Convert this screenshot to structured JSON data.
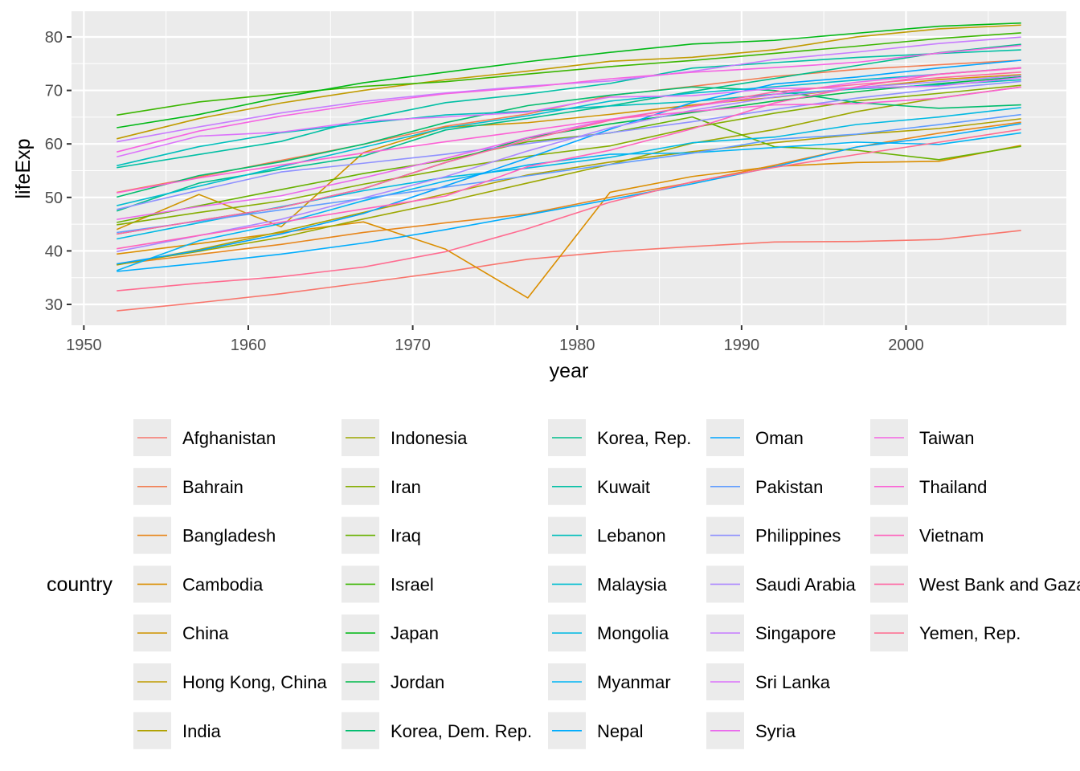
{
  "chart_data": {
    "type": "line",
    "xlabel": "year",
    "ylabel": "lifeExp",
    "xlim": [
      1949.25,
      2009.75
    ],
    "ylim": [
      26.1,
      84.8
    ],
    "x_ticks": [
      1950,
      1960,
      1970,
      1980,
      1990,
      2000
    ],
    "y_ticks": [
      30,
      40,
      50,
      60,
      70,
      80
    ],
    "grid": true,
    "legend_title": "country",
    "legend_position": "bottom",
    "x": [
      1952,
      1957,
      1962,
      1967,
      1972,
      1977,
      1982,
      1987,
      1992,
      1997,
      2002,
      2007
    ],
    "series": [
      {
        "name": "Afghanistan",
        "color": "#F8766D",
        "values": [
          28.8,
          30.33,
          32.0,
          34.02,
          36.09,
          38.44,
          39.85,
          40.82,
          41.67,
          41.76,
          42.13,
          43.83
        ]
      },
      {
        "name": "Bahrain",
        "color": "#F27D52",
        "values": [
          50.94,
          53.83,
          56.92,
          59.92,
          63.3,
          65.59,
          69.05,
          70.75,
          72.6,
          73.92,
          74.8,
          75.64
        ]
      },
      {
        "name": "Bangladesh",
        "color": "#E7861B",
        "values": [
          37.48,
          39.35,
          41.22,
          43.45,
          45.25,
          46.92,
          50.01,
          52.82,
          56.02,
          59.41,
          62.01,
          64.06
        ]
      },
      {
        "name": "Cambodia",
        "color": "#DB8E00",
        "values": [
          39.42,
          41.37,
          43.42,
          45.42,
          40.32,
          31.22,
          50.96,
          53.91,
          55.8,
          56.53,
          56.75,
          59.72
        ]
      },
      {
        "name": "China",
        "color": "#CF9400",
        "values": [
          44.0,
          50.55,
          44.5,
          58.38,
          63.12,
          63.97,
          65.53,
          67.27,
          68.69,
          70.43,
          72.03,
          72.96
        ]
      },
      {
        "name": "Hong Kong, China",
        "color": "#C09B00",
        "values": [
          60.96,
          64.75,
          67.65,
          70.0,
          72.0,
          73.6,
          75.45,
          76.2,
          77.6,
          80.0,
          81.5,
          82.21
        ]
      },
      {
        "name": "India",
        "color": "#AFA100",
        "values": [
          37.37,
          40.25,
          43.61,
          47.19,
          50.65,
          54.21,
          56.6,
          58.55,
          60.22,
          61.77,
          62.88,
          64.7
        ]
      },
      {
        "name": "Indonesia",
        "color": "#9CA700",
        "values": [
          37.47,
          39.92,
          42.52,
          45.96,
          49.2,
          52.7,
          56.16,
          60.14,
          62.68,
          66.04,
          68.59,
          70.65
        ]
      },
      {
        "name": "Iran",
        "color": "#85AD00",
        "values": [
          44.87,
          47.18,
          49.33,
          52.47,
          55.23,
          57.7,
          59.62,
          63.04,
          65.74,
          68.04,
          69.45,
          70.96
        ]
      },
      {
        "name": "Iraq",
        "color": "#68B100",
        "values": [
          45.32,
          48.44,
          51.46,
          54.46,
          56.95,
          60.41,
          62.04,
          65.04,
          59.46,
          58.81,
          57.05,
          59.55
        ]
      },
      {
        "name": "Israel",
        "color": "#3BB600",
        "values": [
          65.39,
          67.84,
          69.39,
          70.75,
          71.63,
          73.06,
          74.45,
          75.6,
          76.93,
          78.27,
          79.7,
          80.75
        ]
      },
      {
        "name": "Japan",
        "color": "#00B815",
        "values": [
          63.03,
          65.5,
          68.73,
          71.43,
          73.42,
          75.38,
          77.11,
          78.67,
          79.36,
          80.69,
          82.0,
          82.6
        ]
      },
      {
        "name": "Jordan",
        "color": "#00BA4A",
        "values": [
          43.16,
          45.67,
          48.13,
          51.63,
          56.53,
          61.13,
          63.74,
          65.87,
          68.02,
          69.77,
          71.26,
          72.54
        ]
      },
      {
        "name": "Korea, Dem. Rep.",
        "color": "#00BC6E",
        "values": [
          50.06,
          54.08,
          56.66,
          59.94,
          63.98,
          67.16,
          69.1,
          70.65,
          69.98,
          67.73,
          66.66,
          67.3
        ]
      },
      {
        "name": "Korea, Rep.",
        "color": "#00BE8B",
        "values": [
          47.45,
          52.68,
          55.29,
          57.72,
          62.61,
          64.77,
          67.12,
          69.81,
          72.24,
          74.65,
          77.05,
          78.62
        ]
      },
      {
        "name": "Kuwait",
        "color": "#00BFA4",
        "values": [
          55.56,
          58.03,
          60.47,
          64.62,
          67.71,
          69.34,
          71.31,
          74.17,
          75.19,
          76.16,
          76.9,
          77.59
        ]
      },
      {
        "name": "Lebanon",
        "color": "#00BFBB",
        "values": [
          55.93,
          59.49,
          62.09,
          63.87,
          65.42,
          66.1,
          67.09,
          67.93,
          69.29,
          70.27,
          71.03,
          71.99
        ]
      },
      {
        "name": "Malaysia",
        "color": "#00BDD0",
        "values": [
          48.46,
          52.1,
          55.74,
          59.37,
          63.01,
          65.26,
          68.0,
          69.5,
          70.69,
          71.94,
          73.04,
          74.24
        ]
      },
      {
        "name": "Mongolia",
        "color": "#00B9E3",
        "values": [
          42.24,
          45.25,
          48.25,
          51.25,
          53.75,
          55.49,
          57.49,
          60.22,
          61.27,
          63.63,
          65.03,
          66.8
        ]
      },
      {
        "name": "Myanmar",
        "color": "#00B4F4",
        "values": [
          36.32,
          41.91,
          45.11,
          49.38,
          53.07,
          56.06,
          58.06,
          58.34,
          59.32,
          60.33,
          59.91,
          62.07
        ]
      },
      {
        "name": "Nepal",
        "color": "#00ACFC",
        "values": [
          36.16,
          37.69,
          39.39,
          41.47,
          43.97,
          46.75,
          49.59,
          52.54,
          55.73,
          59.43,
          61.34,
          63.79
        ]
      },
      {
        "name": "Oman",
        "color": "#00A4FF",
        "values": [
          37.58,
          40.08,
          43.17,
          46.99,
          52.14,
          57.37,
          62.73,
          67.73,
          71.2,
          72.5,
          74.19,
          75.64
        ]
      },
      {
        "name": "Pakistan",
        "color": "#619CFF",
        "values": [
          43.44,
          45.56,
          47.67,
          49.8,
          51.93,
          54.04,
          56.16,
          58.25,
          60.84,
          61.82,
          63.61,
          65.48
        ]
      },
      {
        "name": "Philippines",
        "color": "#8F91FF",
        "values": [
          47.75,
          51.33,
          54.76,
          56.39,
          58.07,
          60.06,
          62.08,
          64.15,
          66.46,
          68.56,
          70.3,
          71.69
        ]
      },
      {
        "name": "Saudi Arabia",
        "color": "#AC88FF",
        "values": [
          39.88,
          42.87,
          45.91,
          49.9,
          53.89,
          58.69,
          63.01,
          66.3,
          68.77,
          70.53,
          71.63,
          72.78
        ]
      },
      {
        "name": "Singapore",
        "color": "#C77CFF",
        "values": [
          60.4,
          63.18,
          65.8,
          67.95,
          69.52,
          70.8,
          71.76,
          73.56,
          75.79,
          77.16,
          78.77,
          79.97
        ]
      },
      {
        "name": "Sri Lanka",
        "color": "#DB72FB",
        "values": [
          57.59,
          61.46,
          62.19,
          64.27,
          65.04,
          65.95,
          68.76,
          69.01,
          70.38,
          70.46,
          70.82,
          72.4
        ]
      },
      {
        "name": "Syria",
        "color": "#EA69EC",
        "values": [
          45.88,
          48.28,
          50.31,
          53.66,
          57.3,
          61.2,
          64.59,
          66.97,
          69.25,
          71.53,
          73.05,
          74.14
        ]
      },
      {
        "name": "Taiwan",
        "color": "#F564E3",
        "values": [
          58.5,
          62.4,
          65.2,
          67.5,
          69.39,
          70.59,
          72.16,
          73.4,
          74.26,
          75.25,
          76.99,
          78.4
        ]
      },
      {
        "name": "Thailand",
        "color": "#FC61D5",
        "values": [
          50.85,
          53.63,
          56.06,
          58.29,
          60.41,
          62.49,
          64.6,
          66.08,
          67.3,
          67.52,
          68.56,
          70.62
        ]
      },
      {
        "name": "Vietnam",
        "color": "#FF62BC",
        "values": [
          40.41,
          42.89,
          45.36,
          47.84,
          50.25,
          55.76,
          58.82,
          62.82,
          67.66,
          70.67,
          73.02,
          74.25
        ]
      },
      {
        "name": "West Bank and Gaza",
        "color": "#FF67A4",
        "values": [
          43.16,
          45.67,
          48.13,
          51.63,
          56.53,
          60.77,
          64.41,
          67.05,
          69.72,
          71.1,
          72.37,
          73.42
        ]
      },
      {
        "name": "Yemen, Rep.",
        "color": "#FF6C91",
        "values": [
          32.55,
          33.97,
          35.18,
          36.98,
          39.85,
          44.17,
          49.11,
          52.92,
          55.6,
          58.02,
          60.31,
          62.7
        ]
      }
    ]
  }
}
